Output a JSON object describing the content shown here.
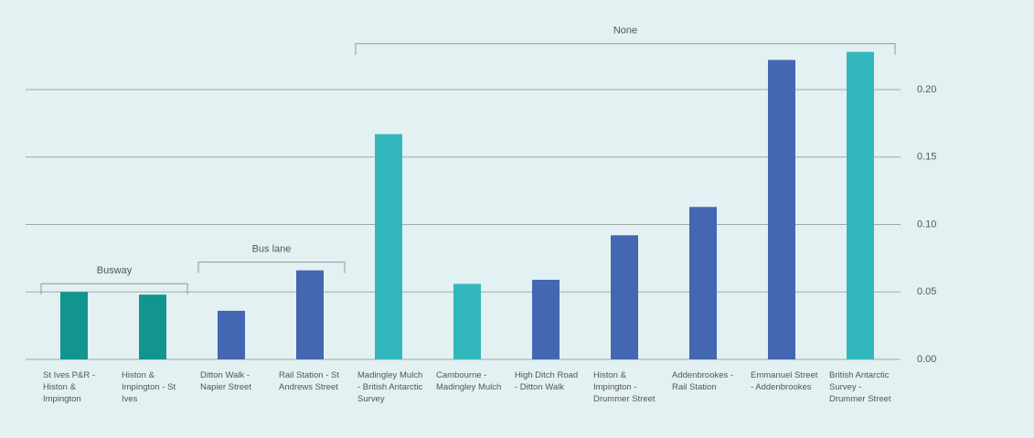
{
  "chart_data": {
    "type": "bar",
    "categories": [
      "St Ives P&R - Histon & Impington",
      "Histon & Impington - St Ives",
      "Ditton Walk - Napier Street",
      "Rail Station - St Andrews Street",
      "Madingley Mulch - British Antarctic Survey",
      "Cambourne - Madingley Mulch",
      "High Ditch Road - Ditton Walk",
      "Histon & Impington - Drummer Street",
      "Addenbrookes - Rail Station",
      "Emmanuel Street - Addenbrookes",
      "British Antarctic Survey - Drummer Street"
    ],
    "groups": [
      "Busway",
      "Busway",
      "Bus lane",
      "Bus lane",
      "None",
      "None",
      "None",
      "None",
      "None",
      "None",
      "None"
    ],
    "values": [
      0.05,
      0.048,
      0.036,
      0.066,
      0.167,
      0.056,
      0.059,
      0.092,
      0.113,
      0.222,
      0.228
    ],
    "colors": [
      "#12948f",
      "#12948f",
      "#4467b1",
      "#4467b1",
      "#33b7bd",
      "#33b7bd",
      "#4467b1",
      "#4467b1",
      "#4467b1",
      "#4467b1",
      "#33b7bd"
    ],
    "ylim": [
      0,
      0.24
    ],
    "yticks": [
      {
        "value": 0,
        "label": "0.00"
      },
      {
        "value": 0.05,
        "label": "0.05"
      },
      {
        "value": 0.1,
        "label": "0.10"
      },
      {
        "value": 0.15,
        "label": "0.15"
      },
      {
        "value": 0.2,
        "label": "0.20"
      }
    ],
    "y_axis_side": "right",
    "grid": true
  }
}
